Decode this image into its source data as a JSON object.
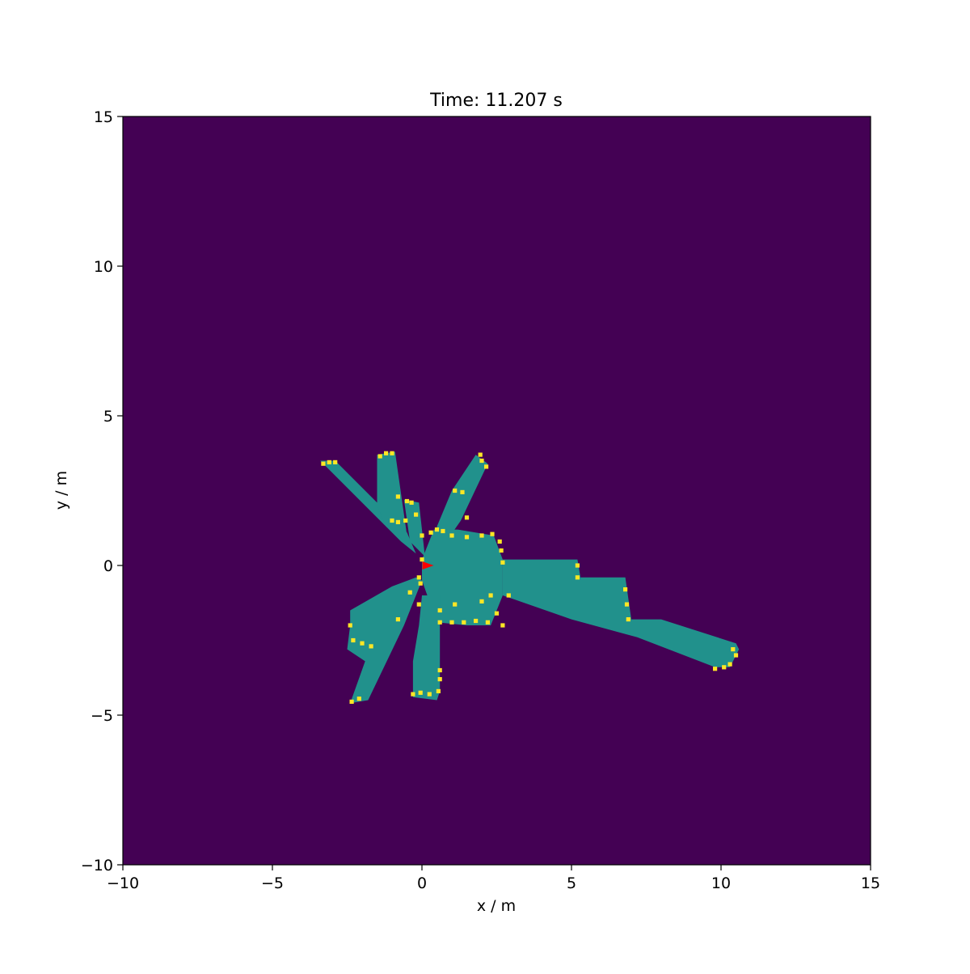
{
  "chart_data": {
    "type": "heatmap",
    "title": "Time: 11.207 s",
    "xlabel": "x / m",
    "ylabel": "y / m",
    "xlim": [
      -10,
      15
    ],
    "ylim": [
      -10,
      15
    ],
    "x_ticks": [
      -10,
      -5,
      0,
      5,
      10,
      15
    ],
    "y_ticks": [
      -10,
      -5,
      0,
      5,
      10,
      15
    ],
    "x_tick_labels": [
      "−10",
      "−5",
      "0",
      "5",
      "10",
      "15"
    ],
    "y_tick_labels": [
      "−10",
      "−5",
      "0",
      "5",
      "10",
      "15"
    ],
    "grid": false,
    "legend": "none",
    "colors": {
      "unknown": "#440154",
      "free": "#21918c",
      "occupied": "#fde725",
      "robot": "#ff0000"
    },
    "free_regions": [
      {
        "name": "ray-upper-left",
        "polygon": [
          [
            -3.4,
            3.5
          ],
          [
            -2.9,
            3.5
          ],
          [
            -0.5,
            1.1
          ],
          [
            -0.2,
            0.4
          ],
          [
            -0.7,
            0.8
          ]
        ]
      },
      {
        "name": "ray-upper-left-2",
        "polygon": [
          [
            -1.5,
            3.7
          ],
          [
            -0.9,
            3.8
          ],
          [
            -0.5,
            1.0
          ],
          [
            -0.3,
            0.6
          ],
          [
            -1.2,
            1.3
          ],
          [
            -1.5,
            2.0
          ]
        ]
      },
      {
        "name": "ray-upper-mid",
        "polygon": [
          [
            -0.6,
            2.2
          ],
          [
            -0.1,
            2.1
          ],
          [
            0.1,
            0.3
          ],
          [
            -0.4,
            0.8
          ]
        ]
      },
      {
        "name": "ray-upper-right",
        "polygon": [
          [
            1.8,
            3.7
          ],
          [
            2.2,
            3.4
          ],
          [
            1.3,
            1.5
          ],
          [
            0.6,
            0.5
          ],
          [
            0.5,
            1.3
          ],
          [
            1.0,
            2.5
          ]
        ]
      },
      {
        "name": "core",
        "polygon": [
          [
            0.4,
            1.2
          ],
          [
            1.2,
            1.2
          ],
          [
            2.4,
            1.0
          ],
          [
            2.7,
            0.2
          ],
          [
            2.7,
            -1.0
          ],
          [
            2.3,
            -2.0
          ],
          [
            1.5,
            -2.0
          ],
          [
            0.5,
            -1.9
          ],
          [
            0.0,
            -0.5
          ],
          [
            0.0,
            0.2
          ]
        ]
      },
      {
        "name": "beam-right",
        "polygon": [
          [
            2.7,
            0.2
          ],
          [
            5.2,
            0.2
          ],
          [
            5.3,
            -0.4
          ],
          [
            6.8,
            -0.4
          ],
          [
            7.0,
            -1.8
          ],
          [
            8.0,
            -1.8
          ],
          [
            10.5,
            -2.6
          ],
          [
            10.6,
            -2.8
          ],
          [
            10.3,
            -3.4
          ],
          [
            9.8,
            -3.4
          ],
          [
            7.2,
            -2.4
          ],
          [
            5.0,
            -1.8
          ],
          [
            2.7,
            -1.0
          ]
        ]
      },
      {
        "name": "ray-lower-left",
        "polygon": [
          [
            -2.4,
            -1.5
          ],
          [
            -1.0,
            -0.7
          ],
          [
            -0.2,
            -0.4
          ],
          [
            0.0,
            -0.5
          ],
          [
            -0.6,
            -2.0
          ],
          [
            -1.8,
            -4.5
          ],
          [
            -2.4,
            -4.6
          ],
          [
            -1.9,
            -3.2
          ],
          [
            -2.5,
            -2.8
          ],
          [
            -2.4,
            -2.0
          ]
        ]
      },
      {
        "name": "ray-lower-mid",
        "polygon": [
          [
            0.0,
            -1.0
          ],
          [
            0.6,
            -1.0
          ],
          [
            0.6,
            -4.2
          ],
          [
            0.5,
            -4.5
          ],
          [
            -0.3,
            -4.4
          ],
          [
            -0.3,
            -3.2
          ],
          [
            -0.1,
            -2.0
          ]
        ]
      }
    ],
    "occupied_cells": [
      [
        -3.3,
        3.4
      ],
      [
        -3.1,
        3.45
      ],
      [
        -2.9,
        3.45
      ],
      [
        -1.4,
        3.65
      ],
      [
        -1.2,
        3.75
      ],
      [
        -1.0,
        3.75
      ],
      [
        -0.8,
        2.3
      ],
      [
        -0.5,
        2.15
      ],
      [
        -0.35,
        2.1
      ],
      [
        -1.0,
        1.5
      ],
      [
        -0.8,
        1.45
      ],
      [
        -0.55,
        1.5
      ],
      [
        -0.2,
        1.7
      ],
      [
        1.1,
        2.5
      ],
      [
        1.35,
        2.45
      ],
      [
        1.5,
        1.6
      ],
      [
        2.0,
        3.5
      ],
      [
        2.15,
        3.3
      ],
      [
        1.95,
        3.7
      ],
      [
        0.0,
        1.0
      ],
      [
        0.3,
        1.1
      ],
      [
        0.5,
        1.2
      ],
      [
        0.7,
        1.15
      ],
      [
        1.0,
        1.0
      ],
      [
        1.5,
        0.95
      ],
      [
        2.0,
        1.0
      ],
      [
        2.35,
        1.05
      ],
      [
        2.6,
        0.8
      ],
      [
        2.65,
        0.5
      ],
      [
        2.7,
        0.1
      ],
      [
        5.2,
        0.0
      ],
      [
        5.2,
        -0.4
      ],
      [
        6.8,
        -0.8
      ],
      [
        6.85,
        -1.3
      ],
      [
        6.9,
        -1.8
      ],
      [
        10.4,
        -2.8
      ],
      [
        10.5,
        -3.0
      ],
      [
        10.3,
        -3.3
      ],
      [
        9.8,
        -3.45
      ],
      [
        10.1,
        -3.4
      ],
      [
        0.6,
        -1.5
      ],
      [
        0.6,
        -1.9
      ],
      [
        1.0,
        -1.9
      ],
      [
        1.4,
        -1.9
      ],
      [
        1.8,
        -1.85
      ],
      [
        2.2,
        -1.9
      ],
      [
        2.5,
        -1.6
      ],
      [
        2.7,
        -2.0
      ],
      [
        1.1,
        -1.3
      ],
      [
        2.0,
        -1.2
      ],
      [
        2.3,
        -1.0
      ],
      [
        2.9,
        -1.0
      ],
      [
        -2.4,
        -2.0
      ],
      [
        -2.3,
        -2.5
      ],
      [
        -2.0,
        -2.6
      ],
      [
        -1.7,
        -2.7
      ],
      [
        -2.35,
        -4.55
      ],
      [
        -2.1,
        -4.45
      ],
      [
        -0.8,
        -1.8
      ],
      [
        -0.4,
        -0.9
      ],
      [
        -0.1,
        -1.3
      ],
      [
        -0.3,
        -4.3
      ],
      [
        -0.05,
        -4.25
      ],
      [
        0.25,
        -4.3
      ],
      [
        0.55,
        -4.2
      ],
      [
        0.6,
        -3.5
      ],
      [
        0.6,
        -3.8
      ],
      [
        -0.1,
        -0.4
      ],
      [
        0.0,
        0.2
      ],
      [
        -0.05,
        -0.6
      ]
    ],
    "robot": {
      "x": 0.15,
      "y": 0.0,
      "heading_deg": 0
    }
  }
}
